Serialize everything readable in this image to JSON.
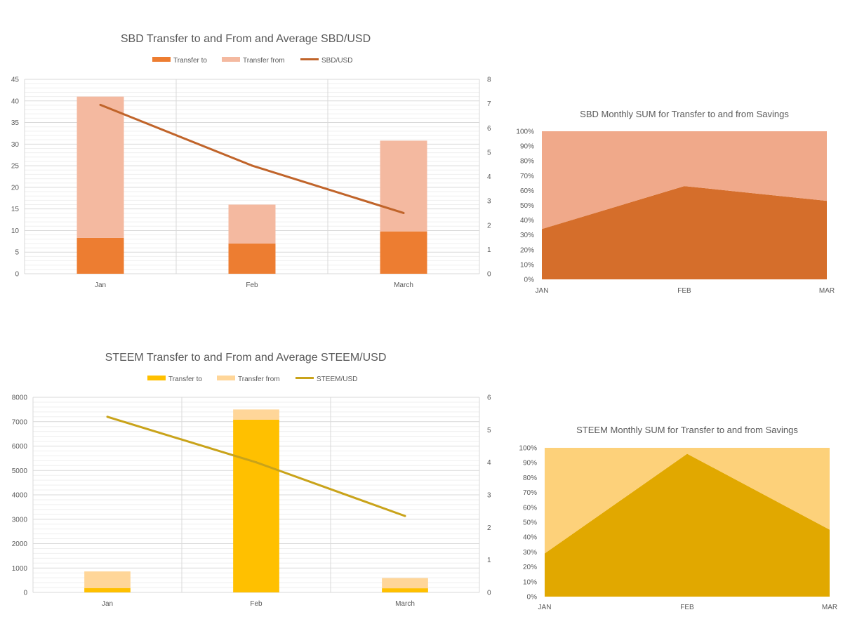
{
  "chart_data": [
    {
      "id": "sbd-combo",
      "type": "bar",
      "stacked": true,
      "title": "SBD Transfer to and From and Average SBD/USD",
      "categories": [
        "Jan",
        "Feb",
        "March"
      ],
      "series": [
        {
          "name": "Transfer to",
          "type": "bar",
          "axis": "left",
          "color": "#ED7D31",
          "values": [
            8.3,
            7.0,
            9.8
          ]
        },
        {
          "name": "Transfer from",
          "type": "bar",
          "axis": "left",
          "color": "#F4B9A0",
          "values": [
            32.7,
            9.0,
            21.0
          ]
        },
        {
          "name": "SBD/USD",
          "type": "line",
          "axis": "right",
          "color": "#C0642A",
          "values": [
            6.95,
            4.45,
            2.5
          ]
        }
      ],
      "ylim": [
        0,
        45
      ],
      "yticks": [
        "0",
        "5",
        "10",
        "15",
        "20",
        "25",
        "30",
        "35",
        "40",
        "45"
      ],
      "y2lim": [
        0,
        8
      ],
      "y2ticks": [
        "0",
        "1",
        "2",
        "3",
        "4",
        "5",
        "6",
        "7",
        "8"
      ],
      "legend": "top",
      "grid": true
    },
    {
      "id": "sbd-area",
      "type": "area",
      "stacked_percent": true,
      "title": "SBD Monthly SUM for Transfer to and from Savings",
      "categories": [
        "JAN",
        "FEB",
        "MAR"
      ],
      "series": [
        {
          "name": "Transfer to",
          "color": "#D56E2B",
          "values": [
            34,
            63,
            53
          ]
        },
        {
          "name": "Transfer from",
          "color": "#F0A98A",
          "values": [
            66,
            37,
            47
          ]
        }
      ],
      "ylim": [
        0,
        100
      ],
      "yticks": [
        "0%",
        "10%",
        "20%",
        "30%",
        "40%",
        "50%",
        "60%",
        "70%",
        "80%",
        "90%",
        "100%"
      ]
    },
    {
      "id": "steem-combo",
      "type": "bar",
      "stacked": true,
      "title": "STEEM Transfer to and From and Average STEEM/USD",
      "categories": [
        "Jan",
        "Feb",
        "March"
      ],
      "series": [
        {
          "name": "Transfer to",
          "type": "bar",
          "axis": "left",
          "color": "#FFC000",
          "values": [
            180,
            7080,
            170
          ]
        },
        {
          "name": "Transfer from",
          "type": "bar",
          "axis": "left",
          "color": "#FFD699",
          "values": [
            680,
            420,
            420
          ]
        },
        {
          "name": "STEEM/USD",
          "type": "line",
          "axis": "right",
          "color": "#C9A31A",
          "values": [
            5.4,
            4.0,
            2.35
          ]
        }
      ],
      "ylim": [
        0,
        8000
      ],
      "yticks": [
        "0",
        "1000",
        "2000",
        "3000",
        "4000",
        "5000",
        "6000",
        "7000",
        "8000"
      ],
      "y2lim": [
        0,
        6
      ],
      "y2ticks": [
        "0",
        "1",
        "2",
        "3",
        "4",
        "5",
        "6"
      ],
      "legend": "top",
      "grid": true
    },
    {
      "id": "steem-area",
      "type": "area",
      "stacked_percent": true,
      "title": "STEEM Monthly SUM for Transfer to and from Savings",
      "categories": [
        "JAN",
        "FEB",
        "MAR"
      ],
      "series": [
        {
          "name": "Transfer to",
          "color": "#E1A800",
          "values": [
            29,
            96,
            45
          ]
        },
        {
          "name": "Transfer from",
          "color": "#FDD17A",
          "values": [
            71,
            4,
            55
          ]
        }
      ],
      "ylim": [
        0,
        100
      ],
      "yticks": [
        "0%",
        "10%",
        "20%",
        "30%",
        "40%",
        "50%",
        "60%",
        "70%",
        "80%",
        "90%",
        "100%"
      ]
    }
  ]
}
